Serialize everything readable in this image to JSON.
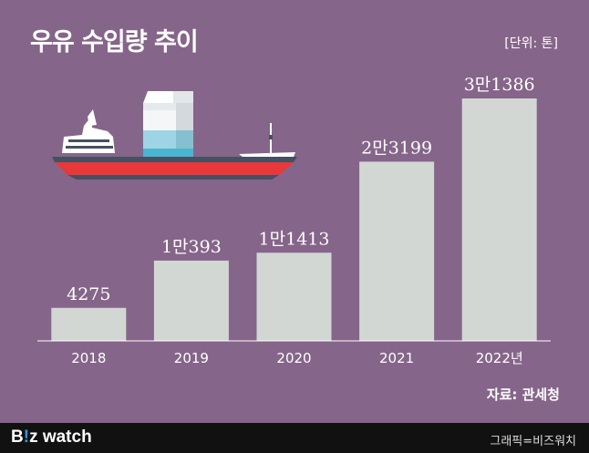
{
  "header": {
    "title": "우유 수입량 추이",
    "unit": "[단위: 톤]"
  },
  "source": "자료: 관세청",
  "footer": {
    "brand_b": "B",
    "brand_i": "!",
    "brand_z": "z watch",
    "credit": "그래픽=비즈워치"
  },
  "colors": {
    "background": "#86658a",
    "bar": "#d2d7d4",
    "text": "#ffffff",
    "footer": "#111111",
    "brand_accent": "#2e9bdc"
  },
  "chart_data": {
    "type": "bar",
    "categories": [
      "2018",
      "2019",
      "2020",
      "2021",
      "2022년"
    ],
    "values": [
      4275,
      10393,
      11413,
      23199,
      31386
    ],
    "data_labels": [
      "4275",
      "1만393",
      "1만1413",
      "2만3199",
      "3만1386"
    ],
    "xlabel": "",
    "ylabel": "",
    "ylim": [
      0,
      31386
    ],
    "grid": false,
    "legend": "none"
  }
}
